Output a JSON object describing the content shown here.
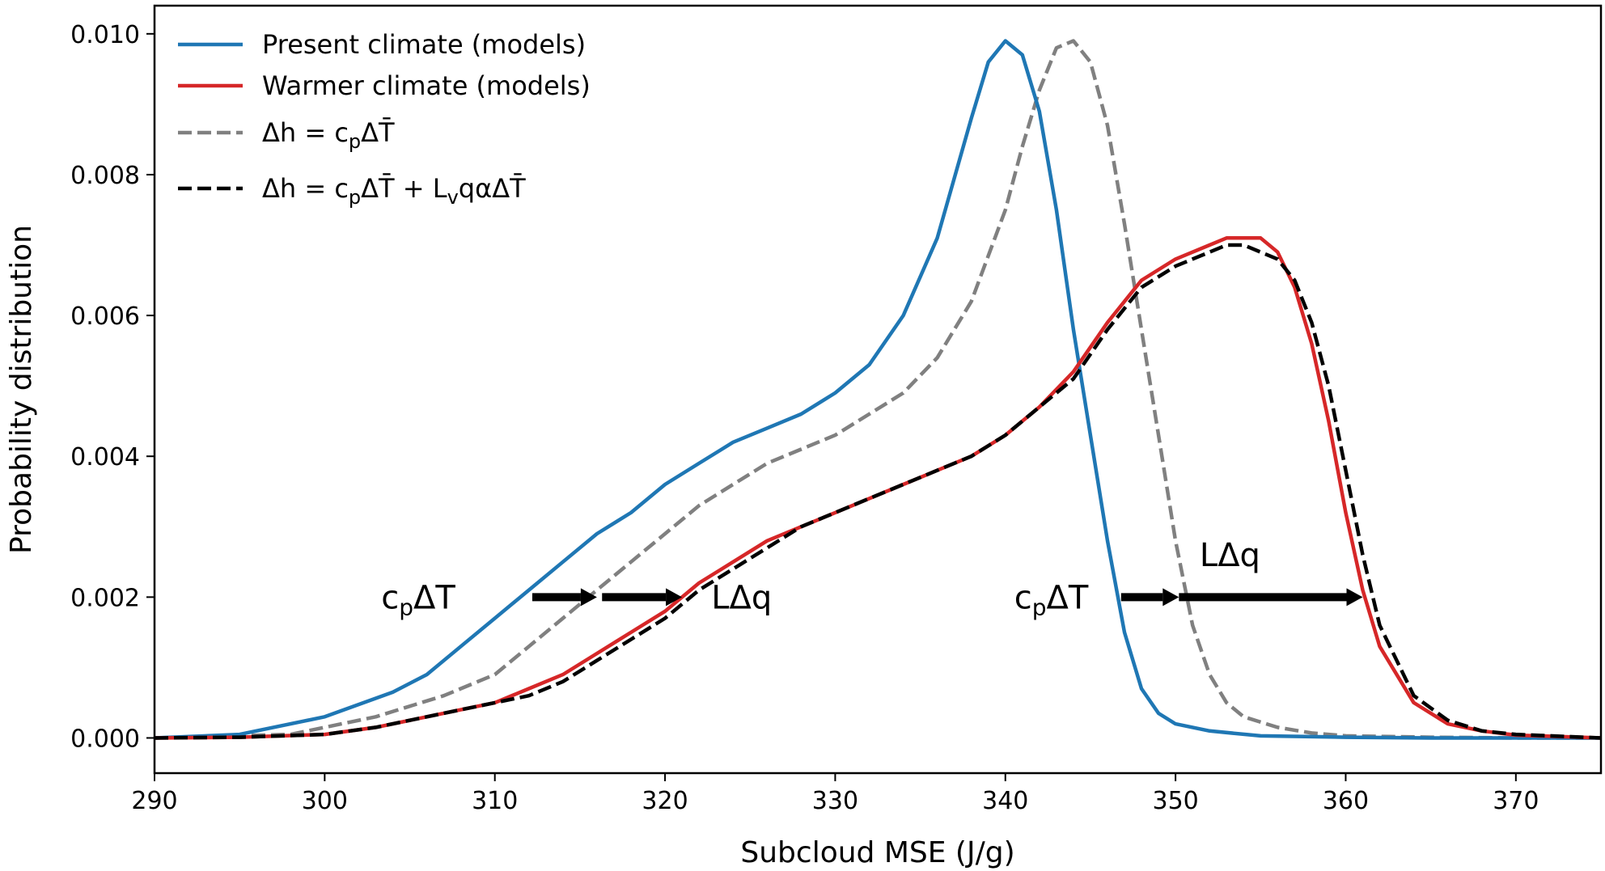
{
  "chart_data": {
    "type": "line",
    "title": "",
    "xlabel": "Subcloud MSE (J/g)",
    "ylabel": "Probability distribution",
    "xlim": [
      290,
      375
    ],
    "ylim": [
      -0.0005,
      0.0104
    ],
    "xticks": [
      290,
      300,
      310,
      320,
      330,
      340,
      350,
      360,
      370
    ],
    "xtick_labels": [
      "290",
      "300",
      "310",
      "320",
      "330",
      "340",
      "350",
      "360",
      "370"
    ],
    "yticks": [
      0.0,
      0.002,
      0.004,
      0.006,
      0.008,
      0.01
    ],
    "ytick_labels": [
      "0.000",
      "0.002",
      "0.004",
      "0.006",
      "0.008",
      "0.010"
    ],
    "grid": false,
    "legend_position": "top-left",
    "series": [
      {
        "name": "Present climate (models)",
        "color": "#1f77b4",
        "style": "solid",
        "x": [
          290,
          295,
          300,
          304,
          306,
          308,
          310,
          312,
          314,
          316,
          318,
          320,
          322,
          324,
          326,
          328,
          330,
          332,
          334,
          336,
          338,
          339,
          340,
          341,
          342,
          343,
          344,
          345,
          346,
          347,
          348,
          349,
          350,
          352,
          355,
          360,
          365,
          370,
          375
        ],
        "y": [
          0.0,
          5e-05,
          0.0003,
          0.00065,
          0.0009,
          0.0013,
          0.0017,
          0.0021,
          0.0025,
          0.0029,
          0.0032,
          0.0036,
          0.0039,
          0.0042,
          0.0044,
          0.0046,
          0.0049,
          0.0053,
          0.006,
          0.0071,
          0.0088,
          0.0096,
          0.0099,
          0.0097,
          0.0089,
          0.0075,
          0.0058,
          0.0043,
          0.0028,
          0.0015,
          0.0007,
          0.00035,
          0.0002,
          0.0001,
          3e-05,
          1e-05,
          0.0,
          0.0,
          0.0
        ]
      },
      {
        "name": "Warmer climate (models)",
        "color": "#d62728",
        "style": "solid",
        "x": [
          290,
          295,
          300,
          303,
          306,
          308,
          310,
          312,
          314,
          316,
          318,
          320,
          322,
          324,
          326,
          328,
          330,
          332,
          334,
          336,
          338,
          340,
          342,
          344,
          346,
          348,
          350,
          352,
          353,
          354,
          355,
          356,
          357,
          358,
          359,
          360,
          361,
          362,
          364,
          366,
          368,
          370,
          375
        ],
        "y": [
          0.0,
          1e-05,
          5e-05,
          0.00015,
          0.0003,
          0.0004,
          0.0005,
          0.0007,
          0.0009,
          0.0012,
          0.0015,
          0.0018,
          0.0022,
          0.0025,
          0.0028,
          0.003,
          0.0032,
          0.0034,
          0.0036,
          0.0038,
          0.004,
          0.0043,
          0.0047,
          0.0052,
          0.0059,
          0.0065,
          0.0068,
          0.007,
          0.0071,
          0.0071,
          0.0071,
          0.0069,
          0.0064,
          0.0056,
          0.0045,
          0.0032,
          0.0021,
          0.0013,
          0.0005,
          0.0002,
          0.0001,
          4e-05,
          0.0
        ]
      },
      {
        "name": "Δh = cₚΔT̄",
        "color": "#808080",
        "style": "dashed",
        "x": [
          290,
          298,
          303,
          307,
          310,
          312,
          314,
          316,
          318,
          320,
          322,
          324,
          326,
          328,
          330,
          332,
          334,
          336,
          338,
          340,
          341,
          342,
          343,
          344,
          345,
          346,
          347,
          348,
          349,
          350,
          351,
          352,
          353,
          354,
          356,
          358,
          360,
          365,
          370,
          375
        ],
        "y": [
          0.0,
          5e-05,
          0.0003,
          0.0006,
          0.0009,
          0.0013,
          0.0017,
          0.0021,
          0.0025,
          0.0029,
          0.0033,
          0.0036,
          0.0039,
          0.0041,
          0.0043,
          0.0046,
          0.0049,
          0.0054,
          0.0062,
          0.0075,
          0.0084,
          0.0092,
          0.0098,
          0.0099,
          0.0096,
          0.0087,
          0.0073,
          0.0058,
          0.0043,
          0.0028,
          0.0016,
          0.0009,
          0.0005,
          0.0003,
          0.00015,
          7e-05,
          3e-05,
          1e-05,
          0.0,
          0.0
        ]
      },
      {
        "name": "Δh = cₚΔT̄ + Lᵥqα ΔT̄",
        "color": "#000000",
        "style": "dashed",
        "x": [
          290,
          295,
          300,
          303,
          306,
          308,
          310,
          312,
          314,
          316,
          318,
          320,
          322,
          324,
          326,
          328,
          330,
          332,
          334,
          336,
          338,
          340,
          342,
          344,
          346,
          348,
          350,
          352,
          353,
          354,
          355,
          356,
          357,
          358,
          359,
          360,
          361,
          362,
          364,
          366,
          368,
          370,
          375
        ],
        "y": [
          0.0,
          1e-05,
          5e-05,
          0.00015,
          0.0003,
          0.0004,
          0.0005,
          0.0006,
          0.0008,
          0.0011,
          0.0014,
          0.0017,
          0.0021,
          0.0024,
          0.0027,
          0.003,
          0.0032,
          0.0034,
          0.0036,
          0.0038,
          0.004,
          0.0043,
          0.0047,
          0.0051,
          0.0058,
          0.0064,
          0.0067,
          0.0069,
          0.007,
          0.007,
          0.0069,
          0.0068,
          0.0065,
          0.0059,
          0.005,
          0.0038,
          0.0026,
          0.0016,
          0.0006,
          0.00025,
          0.0001,
          5e-05,
          0.0
        ]
      }
    ],
    "annotations": [
      {
        "text": "cpΔT",
        "x": 305.5,
        "y": 0.002,
        "parts": [
          {
            "t": "c"
          },
          {
            "t": "p",
            "sub": true
          },
          {
            "t": "ΔT"
          }
        ]
      },
      {
        "text": "LΔq",
        "x": 324.5,
        "y": 0.002,
        "parts": [
          {
            "t": "LΔq"
          }
        ]
      },
      {
        "text": "cpΔT",
        "x": 342.7,
        "y": 0.002,
        "parts": [
          {
            "t": "c"
          },
          {
            "t": "p",
            "sub": true
          },
          {
            "t": "ΔT"
          }
        ]
      },
      {
        "text": "LΔq",
        "x": 353.2,
        "y": 0.0026,
        "parts": [
          {
            "t": "LΔq"
          }
        ]
      }
    ],
    "arrows": [
      {
        "x0": 312.2,
        "x1": 316.0,
        "y": 0.002
      },
      {
        "x0": 316.3,
        "x1": 321.0,
        "y": 0.002
      },
      {
        "x0": 346.8,
        "x1": 350.2,
        "y": 0.002
      },
      {
        "x0": 350.2,
        "x1": 361.0,
        "y": 0.002
      }
    ]
  }
}
